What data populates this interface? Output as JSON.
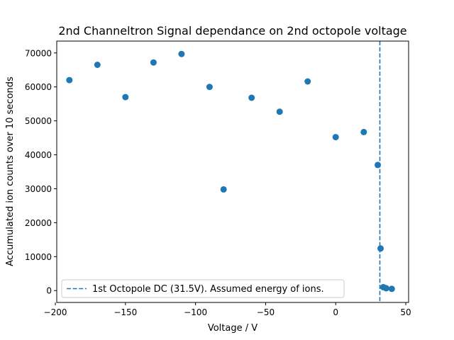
{
  "chart_data": {
    "type": "scatter",
    "title": "2nd Channeltron Signal dependance on 2nd octopole voltage",
    "xlabel": "Voltage / V",
    "ylabel": "Accumulated ion counts over 10 seconds",
    "xlim": [
      -199,
      52
    ],
    "ylim": [
      -3500,
      73500
    ],
    "xticks": [
      -200,
      -150,
      -100,
      -50,
      0,
      50
    ],
    "xtick_labels": [
      "−200",
      "−150",
      "−100",
      "−50",
      "0",
      "50"
    ],
    "yticks": [
      0,
      10000,
      20000,
      30000,
      40000,
      50000,
      60000,
      70000
    ],
    "ytick_labels": [
      "0",
      "10000",
      "20000",
      "30000",
      "40000",
      "50000",
      "60000",
      "70000"
    ],
    "grid": false,
    "legend_position": "lower-left",
    "series": [
      {
        "color": "#1f77b4",
        "x": [
          -190,
          -170,
          -150,
          -130,
          -110,
          -90,
          -80,
          -60,
          -40,
          -20,
          0,
          20,
          30,
          32,
          34,
          36,
          40
        ],
        "y": [
          62000,
          66500,
          57000,
          67200,
          69700,
          60000,
          29800,
          56800,
          52700,
          61600,
          45200,
          46700,
          37000,
          12400,
          1000,
          700,
          500
        ]
      }
    ],
    "vline": {
      "x": 31.5,
      "color": "#1f77b4",
      "style": "dashed",
      "label": "1st Octopole DC (31.5V). Assumed energy of ions."
    }
  }
}
